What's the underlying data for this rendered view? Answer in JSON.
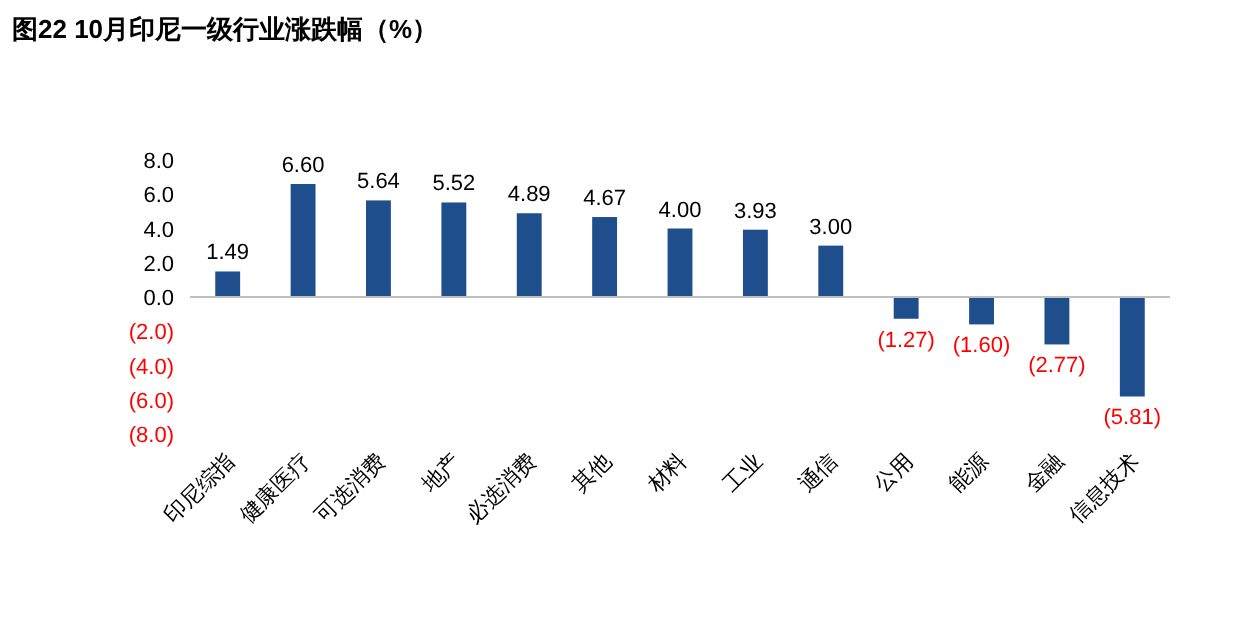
{
  "chart_data": {
    "type": "bar",
    "title": "图22 10月印尼一级行业涨跌幅（%）",
    "categories": [
      "印尼综指",
      "健康医疗",
      "可选消费",
      "地产",
      "必选消费",
      "其他",
      "材料",
      "工业",
      "通信",
      "公用",
      "能源",
      "金融",
      "信息技术"
    ],
    "values": [
      1.49,
      6.6,
      5.64,
      5.52,
      4.89,
      4.67,
      4.0,
      3.93,
      3.0,
      -1.27,
      -1.6,
      -2.77,
      -5.81
    ],
    "value_labels": [
      "1.49",
      "6.60",
      "5.64",
      "5.52",
      "4.89",
      "4.67",
      "4.00",
      "3.93",
      "3.00",
      "(1.27)",
      "(1.60)",
      "(2.77)",
      "(5.81)"
    ],
    "color": "#1f4e8c",
    "ylim": [
      -8,
      8
    ],
    "yticks": [
      {
        "value": 8,
        "label": "8.0"
      },
      {
        "value": 6,
        "label": "6.0"
      },
      {
        "value": 4,
        "label": "4.0"
      },
      {
        "value": 2,
        "label": "2.0"
      },
      {
        "value": 0,
        "label": "0.0"
      },
      {
        "value": -2,
        "label": "(2.0)"
      },
      {
        "value": -4,
        "label": "(4.0)"
      },
      {
        "value": -6,
        "label": "(6.0)"
      },
      {
        "value": -8,
        "label": "(8.0)"
      }
    ]
  }
}
